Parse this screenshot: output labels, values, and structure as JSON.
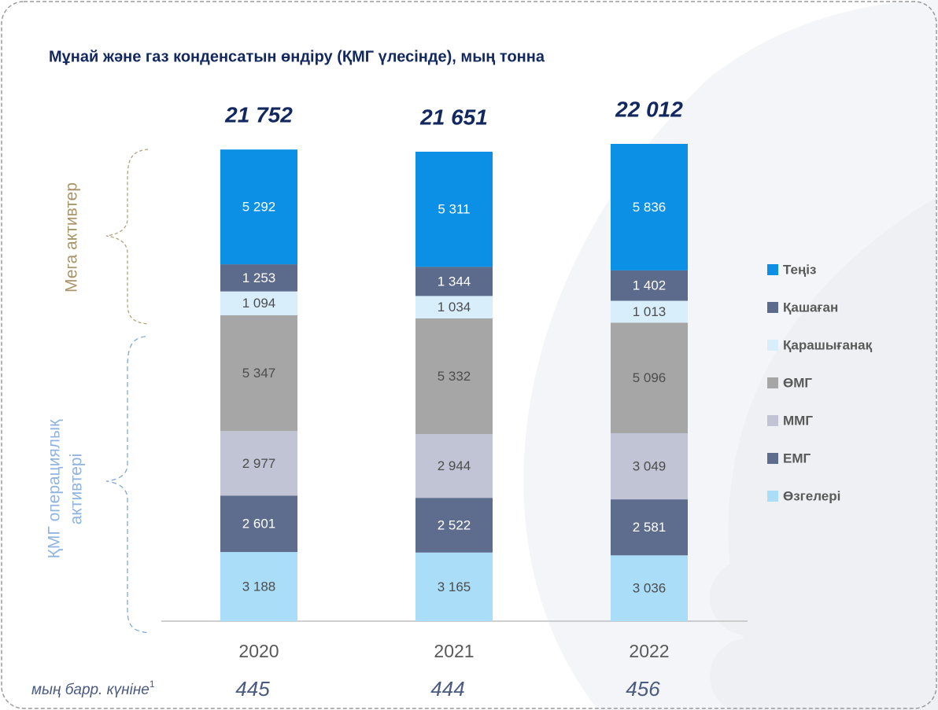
{
  "chart_data": {
    "type": "bar",
    "stacked": true,
    "title": "Мұнай және газ конденсатын өндіру (ҚМГ үлесінде), мың тонна",
    "categories": [
      "2020",
      "2021",
      "2022"
    ],
    "series": [
      {
        "name": "Өзгелері",
        "color": "#a9ddf8",
        "values": [
          3188,
          3165,
          3036
        ],
        "value_labels": [
          "3 188",
          "3 165",
          "3 036"
        ]
      },
      {
        "name": "ЕМГ",
        "color": "#5e6c8e",
        "values": [
          2601,
          2522,
          2581
        ],
        "value_labels": [
          "2 601",
          "2 522",
          "2 581"
        ]
      },
      {
        "name": "ММГ",
        "color": "#c0c4d4",
        "values": [
          2977,
          2944,
          3049
        ],
        "value_labels": [
          "2 977",
          "2 944",
          "3 049"
        ]
      },
      {
        "name": "ӨМГ",
        "color": "#a6a6a6",
        "values": [
          5347,
          5332,
          5096
        ],
        "value_labels": [
          "5 347",
          "5 332",
          "5 096"
        ]
      },
      {
        "name": "Қарашығанақ",
        "color": "#d8eefb",
        "values": [
          1094,
          1034,
          1013
        ],
        "value_labels": [
          "1 094",
          "1 034",
          "1 013"
        ]
      },
      {
        "name": "Қашаған",
        "color": "#5c6a8b",
        "values": [
          1253,
          1344,
          1402
        ],
        "value_labels": [
          "1 253",
          "1 344",
          "1 402"
        ]
      },
      {
        "name": "Теңіз",
        "color": "#0b90e6",
        "values": [
          5292,
          5311,
          5836
        ],
        "value_labels": [
          "5 292",
          "5 311",
          "5 836"
        ]
      }
    ],
    "totals": {
      "values": [
        21752,
        21651,
        22012
      ],
      "value_labels": [
        "21 752",
        "21 651",
        "22 012"
      ]
    },
    "side_labels": {
      "mega": "Мега активтер",
      "operational": [
        "ҚМГ операциялық",
        "активтері"
      ]
    },
    "footer": {
      "label": "мың барр. күніне",
      "note": "1",
      "values": [
        445,
        444,
        456
      ]
    }
  }
}
